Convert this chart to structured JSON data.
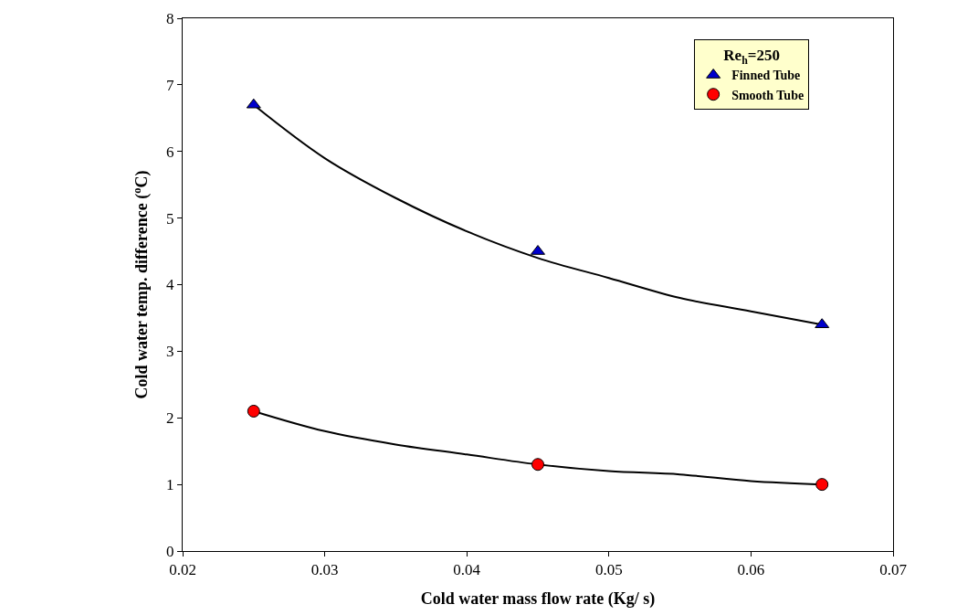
{
  "chart_data": {
    "type": "scatter",
    "xlabel": "Cold water mass flow rate (Kg/ s)",
    "ylabel": "Cold water temp. difference ($^{o}$C)",
    "legend_title": "Re$_{h}$=250",
    "xlim": [
      0.02,
      0.07
    ],
    "xticks": [
      0.02,
      0.03,
      0.04,
      0.05,
      0.06,
      0.07
    ],
    "ylim": [
      0,
      8
    ],
    "yticks": [
      0,
      1,
      2,
      3,
      4,
      5,
      6,
      7,
      8
    ],
    "legend": "top right",
    "series": [
      {
        "type": "line",
        "color": "#000000",
        "marker": "none",
        "line_style": "solid",
        "x": [
          0.025,
          0.03,
          0.035,
          0.04,
          0.045,
          0.05,
          0.055,
          0.06,
          0.065
        ],
        "values": [
          6.7,
          5.9,
          5.3,
          4.8,
          4.4,
          4.1,
          3.8,
          3.6,
          3.4
        ]
      },
      {
        "type": "line",
        "color": "#000000",
        "marker": "none",
        "line_style": "solid",
        "x": [
          0.025,
          0.03,
          0.035,
          0.04,
          0.045,
          0.05,
          0.055,
          0.06,
          0.065
        ],
        "values": [
          2.1,
          1.8,
          1.6,
          1.45,
          1.3,
          1.2,
          1.15,
          1.05,
          1.0
        ]
      },
      {
        "name": "Finned Tube",
        "color": "#0000cc",
        "marker": "triangle",
        "x": [
          0.025,
          0.045,
          0.065
        ],
        "values": [
          6.7,
          4.5,
          3.4
        ]
      },
      {
        "name": "Smooth Tube",
        "color": "#ff0000",
        "marker": "circle",
        "x": [
          0.025,
          0.045,
          0.065
        ],
        "values": [
          2.1,
          1.3,
          1.0
        ]
      }
    ]
  }
}
